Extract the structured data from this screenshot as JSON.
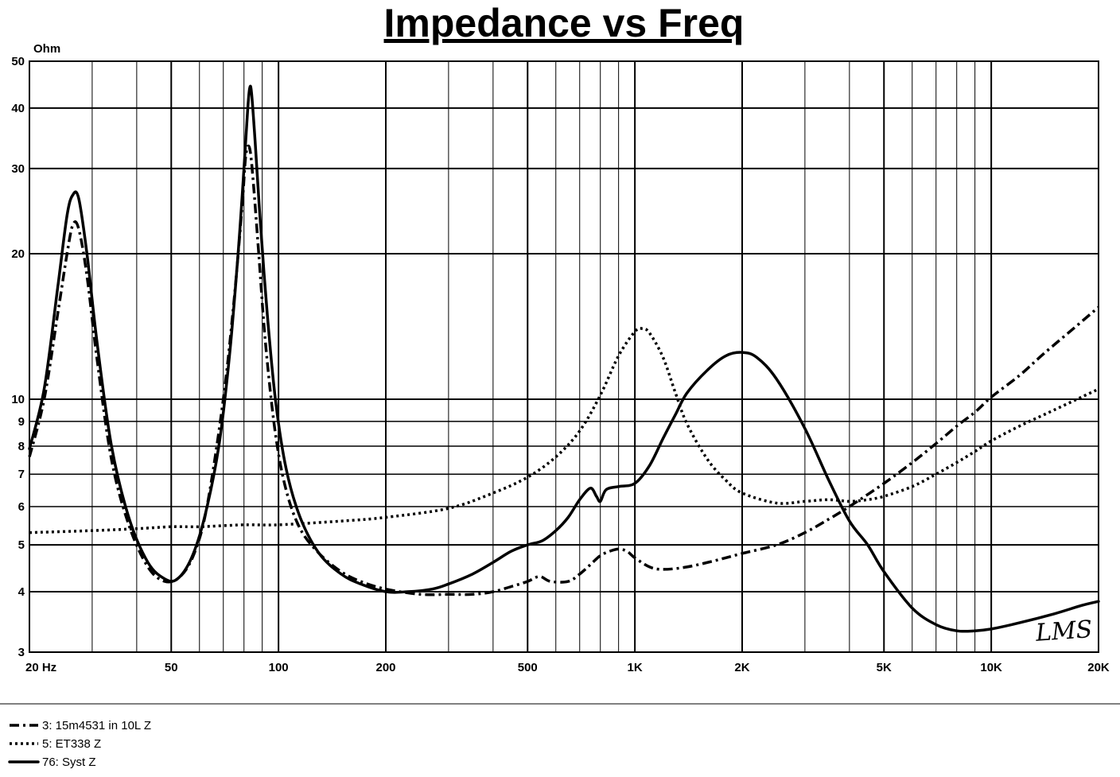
{
  "chart_data": {
    "type": "line",
    "title": "Impedance vs Freq",
    "ylabel": "Ohm",
    "xlabel": "",
    "xscale": "log",
    "yscale": "log",
    "xlim": [
      20,
      20000
    ],
    "ylim": [
      3,
      50
    ],
    "grid": true,
    "x_ticks": [
      {
        "v": 20,
        "label": "20  Hz"
      },
      {
        "v": 50,
        "label": "50"
      },
      {
        "v": 100,
        "label": "100"
      },
      {
        "v": 200,
        "label": "200"
      },
      {
        "v": 500,
        "label": "500"
      },
      {
        "v": 1000,
        "label": "1K"
      },
      {
        "v": 2000,
        "label": "2K"
      },
      {
        "v": 5000,
        "label": "5K"
      },
      {
        "v": 10000,
        "label": "10K"
      },
      {
        "v": 20000,
        "label": "20K"
      }
    ],
    "y_ticks": [
      {
        "v": 50,
        "label": "50"
      },
      {
        "v": 40,
        "label": "40"
      },
      {
        "v": 30,
        "label": "30"
      },
      {
        "v": 20,
        "label": "20"
      },
      {
        "v": 10,
        "label": "10"
      },
      {
        "v": 9,
        "label": "9"
      },
      {
        "v": 8,
        "label": "8"
      },
      {
        "v": 7,
        "label": "7"
      },
      {
        "v": 6,
        "label": "6"
      },
      {
        "v": 5,
        "label": "5"
      },
      {
        "v": 4,
        "label": "4"
      },
      {
        "v": 3,
        "label": "3"
      }
    ],
    "legend_position": "bottom-left",
    "annotation": "LMS",
    "series": [
      {
        "name": "3: 15m4531 in 10L Z",
        "style": "dash-dot",
        "points": [
          [
            20,
            7.6
          ],
          [
            22,
            10
          ],
          [
            24,
            15
          ],
          [
            25.5,
            20
          ],
          [
            26.5,
            23
          ],
          [
            27.5,
            22.5
          ],
          [
            29,
            18
          ],
          [
            31,
            12
          ],
          [
            34,
            7.5
          ],
          [
            38,
            5.5
          ],
          [
            43,
            4.5
          ],
          [
            48,
            4.2
          ],
          [
            53,
            4.3
          ],
          [
            58,
            4.8
          ],
          [
            63,
            6
          ],
          [
            70,
            10
          ],
          [
            75,
            16
          ],
          [
            79,
            25
          ],
          [
            81,
            32
          ],
          [
            83,
            33
          ],
          [
            85,
            28
          ],
          [
            88,
            20
          ],
          [
            92,
            13
          ],
          [
            98,
            8.5
          ],
          [
            105,
            6.5
          ],
          [
            115,
            5.4
          ],
          [
            130,
            4.8
          ],
          [
            150,
            4.4
          ],
          [
            170,
            4.2
          ],
          [
            200,
            4.05
          ],
          [
            250,
            3.95
          ],
          [
            300,
            3.95
          ],
          [
            350,
            3.95
          ],
          [
            400,
            4.0
          ],
          [
            450,
            4.1
          ],
          [
            500,
            4.2
          ],
          [
            540,
            4.3
          ],
          [
            580,
            4.2
          ],
          [
            650,
            4.2
          ],
          [
            700,
            4.35
          ],
          [
            750,
            4.55
          ],
          [
            800,
            4.75
          ],
          [
            850,
            4.85
          ],
          [
            900,
            4.9
          ],
          [
            950,
            4.85
          ],
          [
            1000,
            4.7
          ],
          [
            1100,
            4.5
          ],
          [
            1200,
            4.45
          ],
          [
            1400,
            4.5
          ],
          [
            1700,
            4.65
          ],
          [
            2000,
            4.8
          ],
          [
            2500,
            5.0
          ],
          [
            3000,
            5.3
          ],
          [
            3500,
            5.65
          ],
          [
            4000,
            6.0
          ],
          [
            5000,
            6.7
          ],
          [
            6000,
            7.4
          ],
          [
            7000,
            8.1
          ],
          [
            8000,
            8.8
          ],
          [
            9000,
            9.4
          ],
          [
            10000,
            10.1
          ],
          [
            12000,
            11.2
          ],
          [
            14000,
            12.4
          ],
          [
            17000,
            14.0
          ],
          [
            20000,
            15.5
          ]
        ]
      },
      {
        "name": "5: ET338 Z",
        "style": "dotted",
        "points": [
          [
            20,
            5.3
          ],
          [
            30,
            5.35
          ],
          [
            40,
            5.4
          ],
          [
            50,
            5.45
          ],
          [
            60,
            5.45
          ],
          [
            80,
            5.5
          ],
          [
            100,
            5.5
          ],
          [
            150,
            5.6
          ],
          [
            200,
            5.7
          ],
          [
            300,
            5.95
          ],
          [
            400,
            6.4
          ],
          [
            500,
            6.9
          ],
          [
            600,
            7.6
          ],
          [
            700,
            8.6
          ],
          [
            800,
            10.2
          ],
          [
            900,
            12.3
          ],
          [
            1000,
            13.8
          ],
          [
            1050,
            14.0
          ],
          [
            1100,
            13.7
          ],
          [
            1200,
            12.2
          ],
          [
            1300,
            10.3
          ],
          [
            1400,
            8.9
          ],
          [
            1600,
            7.5
          ],
          [
            1800,
            6.8
          ],
          [
            2000,
            6.4
          ],
          [
            2500,
            6.1
          ],
          [
            3000,
            6.15
          ],
          [
            3500,
            6.2
          ],
          [
            4000,
            6.15
          ],
          [
            4500,
            6.2
          ],
          [
            5000,
            6.3
          ],
          [
            6000,
            6.6
          ],
          [
            7000,
            7.0
          ],
          [
            8000,
            7.4
          ],
          [
            9000,
            7.8
          ],
          [
            10000,
            8.2
          ],
          [
            12000,
            8.8
          ],
          [
            15000,
            9.5
          ],
          [
            20000,
            10.5
          ]
        ]
      },
      {
        "name": "76: Syst Z",
        "style": "solid",
        "points": [
          [
            20,
            7.9
          ],
          [
            22,
            10.5
          ],
          [
            24,
            17
          ],
          [
            25.5,
            24
          ],
          [
            26.5,
            26.5
          ],
          [
            27.5,
            26
          ],
          [
            29,
            20
          ],
          [
            31,
            13
          ],
          [
            34,
            8
          ],
          [
            38,
            5.7
          ],
          [
            43,
            4.6
          ],
          [
            48,
            4.25
          ],
          [
            52,
            4.25
          ],
          [
            57,
            4.7
          ],
          [
            62,
            5.7
          ],
          [
            68,
            8
          ],
          [
            73,
            12.5
          ],
          [
            77,
            20
          ],
          [
            80,
            30
          ],
          [
            82,
            40
          ],
          [
            83,
            44
          ],
          [
            84,
            43
          ],
          [
            86,
            34
          ],
          [
            89,
            23
          ],
          [
            93,
            15
          ],
          [
            98,
            10
          ],
          [
            105,
            7.2
          ],
          [
            115,
            5.7
          ],
          [
            130,
            4.8
          ],
          [
            150,
            4.35
          ],
          [
            170,
            4.15
          ],
          [
            200,
            4.0
          ],
          [
            230,
            4.0
          ],
          [
            270,
            4.05
          ],
          [
            300,
            4.15
          ],
          [
            350,
            4.35
          ],
          [
            400,
            4.6
          ],
          [
            450,
            4.85
          ],
          [
            500,
            5.0
          ],
          [
            550,
            5.1
          ],
          [
            600,
            5.35
          ],
          [
            650,
            5.7
          ],
          [
            700,
            6.2
          ],
          [
            750,
            6.55
          ],
          [
            780,
            6.3
          ],
          [
            800,
            6.15
          ],
          [
            830,
            6.5
          ],
          [
            900,
            6.6
          ],
          [
            1000,
            6.7
          ],
          [
            1100,
            7.3
          ],
          [
            1200,
            8.3
          ],
          [
            1300,
            9.3
          ],
          [
            1400,
            10.3
          ],
          [
            1600,
            11.5
          ],
          [
            1800,
            12.3
          ],
          [
            2000,
            12.5
          ],
          [
            2200,
            12.2
          ],
          [
            2500,
            11.0
          ],
          [
            3000,
            8.7
          ],
          [
            3500,
            6.8
          ],
          [
            4000,
            5.6
          ],
          [
            4500,
            5.0
          ],
          [
            5000,
            4.4
          ],
          [
            6000,
            3.7
          ],
          [
            7000,
            3.42
          ],
          [
            8000,
            3.32
          ],
          [
            9000,
            3.32
          ],
          [
            10000,
            3.35
          ],
          [
            12000,
            3.45
          ],
          [
            15000,
            3.6
          ],
          [
            18000,
            3.75
          ],
          [
            20000,
            3.82
          ]
        ]
      }
    ]
  }
}
